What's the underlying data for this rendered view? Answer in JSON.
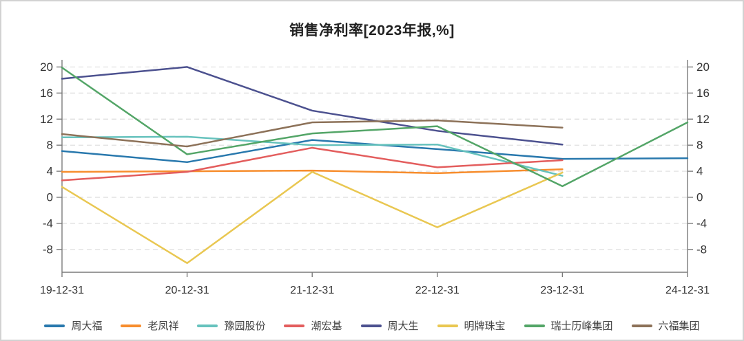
{
  "chart_data": {
    "type": "line",
    "title": "销售净利率[2023年报,%]",
    "categories": [
      "19-12-31",
      "20-12-31",
      "21-12-31",
      "22-12-31",
      "23-12-31",
      "24-12-31"
    ],
    "y_ticks": [
      20,
      16,
      12,
      8,
      4,
      0,
      -4,
      -8
    ],
    "ylim": [
      -11.5,
      21.1
    ],
    "grid": "horizontal-dashed",
    "legend_position": "bottom",
    "dual_y_axis": true,
    "series": [
      {
        "name": "周大福",
        "color": "#2878ad",
        "values": [
          7.1,
          5.4,
          8.8,
          7.4,
          5.9,
          6.0
        ]
      },
      {
        "name": "老凤祥",
        "color": "#f78d2d",
        "values": [
          3.9,
          4.0,
          4.1,
          3.7,
          4.3,
          null
        ]
      },
      {
        "name": "豫园股份",
        "color": "#66c2bd",
        "values": [
          9.2,
          9.3,
          8.0,
          8.1,
          3.3,
          null
        ]
      },
      {
        "name": "潮宏基",
        "color": "#e35d5d",
        "values": [
          2.6,
          3.9,
          7.6,
          4.6,
          5.7,
          null
        ]
      },
      {
        "name": "周大生",
        "color": "#4c518f",
        "values": [
          18.2,
          20.0,
          13.3,
          10.2,
          8.1,
          null
        ]
      },
      {
        "name": "明牌珠宝",
        "color": "#e9c751",
        "values": [
          1.6,
          -10.1,
          3.9,
          -4.6,
          3.8,
          null
        ]
      },
      {
        "name": "瑞士历峰集团",
        "color": "#53a567",
        "values": [
          19.9,
          6.6,
          9.8,
          10.9,
          1.7,
          11.5
        ]
      },
      {
        "name": "六福集团",
        "color": "#8c7158",
        "values": [
          9.7,
          7.8,
          11.5,
          11.8,
          10.7,
          null
        ]
      }
    ]
  },
  "colors": {
    "background": "#ffffff",
    "panel_border": "#d2d2d2",
    "axis": "#7a7a7a",
    "grid": "#dcdcdc",
    "tick_label": "#333333",
    "title": "#222222",
    "legend_label": "#444444"
  }
}
